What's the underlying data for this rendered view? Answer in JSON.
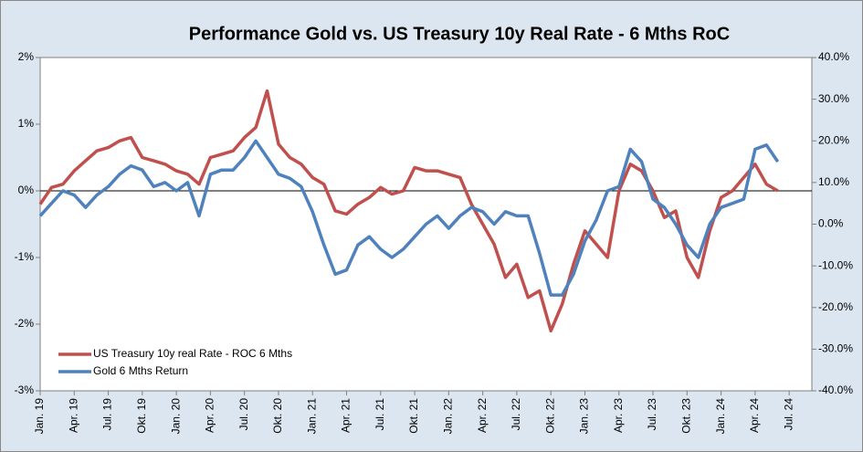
{
  "chart_data": {
    "type": "line",
    "title": "Performance Gold vs. US Treasury 10y Real Rate - 6 Mths RoC",
    "x": [
      "2019-01",
      "2019-02",
      "2019-03",
      "2019-04",
      "2019-05",
      "2019-06",
      "2019-07",
      "2019-08",
      "2019-09",
      "2019-10",
      "2019-11",
      "2019-12",
      "2020-01",
      "2020-02",
      "2020-03",
      "2020-04",
      "2020-05",
      "2020-06",
      "2020-07",
      "2020-08",
      "2020-09",
      "2020-10",
      "2020-11",
      "2020-12",
      "2021-01",
      "2021-02",
      "2021-03",
      "2021-04",
      "2021-05",
      "2021-06",
      "2021-07",
      "2021-08",
      "2021-09",
      "2021-10",
      "2021-11",
      "2021-12",
      "2022-01",
      "2022-02",
      "2022-03",
      "2022-04",
      "2022-05",
      "2022-06",
      "2022-07",
      "2022-08",
      "2022-09",
      "2022-10",
      "2022-11",
      "2022-12",
      "2023-01",
      "2023-02",
      "2023-03",
      "2023-04",
      "2023-05",
      "2023-06",
      "2023-07",
      "2023-08",
      "2023-09",
      "2023-10",
      "2023-11",
      "2023-12",
      "2024-01",
      "2024-02",
      "2024-03",
      "2024-04",
      "2024-05",
      "2024-06"
    ],
    "series": [
      {
        "name": "US Treasury 10y real Rate - ROC 6 Mths",
        "color": "#c0504d",
        "axis": "y",
        "values": [
          -0.2,
          0.05,
          0.1,
          0.3,
          0.45,
          0.6,
          0.65,
          0.75,
          0.8,
          0.5,
          0.45,
          0.4,
          0.3,
          0.25,
          0.1,
          0.5,
          0.55,
          0.6,
          0.8,
          0.95,
          1.5,
          0.7,
          0.5,
          0.4,
          0.2,
          0.1,
          -0.3,
          -0.35,
          -0.2,
          -0.1,
          0.05,
          -0.05,
          0.0,
          0.35,
          0.3,
          0.3,
          0.25,
          0.2,
          -0.2,
          -0.5,
          -0.8,
          -1.3,
          -1.1,
          -1.6,
          -1.5,
          -2.1,
          -1.7,
          -1.1,
          -0.6,
          -0.8,
          -1.0,
          0.0,
          0.4,
          0.3,
          0.0,
          -0.4,
          -0.3,
          -1.0,
          -1.3,
          -0.6,
          -0.1,
          0.0,
          0.2,
          0.4,
          0.1,
          0.0
        ]
      },
      {
        "name": "Gold 6 Mths Return",
        "color": "#4f81bd",
        "axis": "y2",
        "values": [
          2,
          5,
          8,
          7,
          4,
          7,
          9,
          12,
          14,
          13,
          9,
          10,
          8,
          10,
          2,
          12,
          13,
          13,
          16,
          20,
          16,
          12,
          11,
          9,
          3,
          -5,
          -12,
          -11,
          -5,
          -3,
          -6,
          -8,
          -6,
          -3,
          0,
          2,
          -1,
          2,
          4,
          3,
          0,
          3,
          2,
          2,
          -7,
          -17,
          -17,
          -12,
          -4,
          1,
          8,
          9,
          18,
          15,
          6,
          4,
          0,
          -5,
          -8,
          0,
          4,
          5,
          6,
          18,
          19,
          15
        ]
      }
    ],
    "xlim": [
      "2019-01",
      "2024-09"
    ],
    "xticks": [
      {
        "value": "2019-01",
        "label": "Jan. 19"
      },
      {
        "value": "2019-04",
        "label": "Apr. 19"
      },
      {
        "value": "2019-07",
        "label": "Jul. 19"
      },
      {
        "value": "2019-10",
        "label": "Okt. 19"
      },
      {
        "value": "2020-01",
        "label": "Jan. 20"
      },
      {
        "value": "2020-04",
        "label": "Apr. 20"
      },
      {
        "value": "2020-07",
        "label": "Jul. 20"
      },
      {
        "value": "2020-10",
        "label": "Okt. 20"
      },
      {
        "value": "2021-01",
        "label": "Jan. 21"
      },
      {
        "value": "2021-04",
        "label": "Apr. 21"
      },
      {
        "value": "2021-07",
        "label": "Jul. 21"
      },
      {
        "value": "2021-10",
        "label": "Okt. 21"
      },
      {
        "value": "2022-01",
        "label": "Jan. 22"
      },
      {
        "value": "2022-04",
        "label": "Apr. 22"
      },
      {
        "value": "2022-07",
        "label": "Jul. 22"
      },
      {
        "value": "2022-10",
        "label": "Okt. 22"
      },
      {
        "value": "2023-01",
        "label": "Jan. 23"
      },
      {
        "value": "2023-04",
        "label": "Apr. 23"
      },
      {
        "value": "2023-07",
        "label": "Jul. 23"
      },
      {
        "value": "2023-10",
        "label": "Okt. 23"
      },
      {
        "value": "2024-01",
        "label": "Jan. 24"
      },
      {
        "value": "2024-04",
        "label": "Apr. 24"
      },
      {
        "value": "2024-07",
        "label": "Jul. 24"
      }
    ],
    "ylim": [
      -3,
      2
    ],
    "yticks": [
      {
        "value": -3,
        "label": "-3%"
      },
      {
        "value": -2,
        "label": "-2%"
      },
      {
        "value": -1,
        "label": "-1%"
      },
      {
        "value": 0,
        "label": "0%"
      },
      {
        "value": 1,
        "label": "1%"
      },
      {
        "value": 2,
        "label": "2%"
      }
    ],
    "y2lim": [
      -40,
      40
    ],
    "y2ticks": [
      {
        "value": -40,
        "label": "-40.0%"
      },
      {
        "value": -30,
        "label": "-30.0%"
      },
      {
        "value": -20,
        "label": "-20.0%"
      },
      {
        "value": -10,
        "label": "-10.0%"
      },
      {
        "value": 0,
        "label": "0.0%"
      },
      {
        "value": 10,
        "label": "10.0%"
      },
      {
        "value": 20,
        "label": "20.0%"
      },
      {
        "value": 30,
        "label": "30.0%"
      },
      {
        "value": 40,
        "label": "40.0%"
      }
    ],
    "legend": "lower left"
  }
}
